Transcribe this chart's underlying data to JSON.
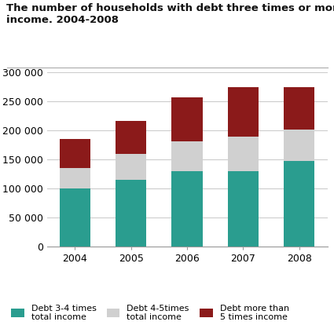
{
  "title": "The number of households with debt three times or more total\nincome. 2004-2008",
  "years": [
    2004,
    2005,
    2006,
    2007,
    2008
  ],
  "debt_3_4": [
    100000,
    115000,
    130000,
    130000,
    147000
  ],
  "debt_4_5": [
    35000,
    45000,
    52000,
    60000,
    55000
  ],
  "debt_5plus": [
    50000,
    57000,
    75000,
    85000,
    73000
  ],
  "color_3_4": "#2a9d8f",
  "color_4_5": "#d0d0d0",
  "color_5plus": "#8b1a1a",
  "ylim": [
    0,
    300000
  ],
  "yticks": [
    0,
    50000,
    100000,
    150000,
    200000,
    250000,
    300000
  ],
  "legend_labels": [
    "Debt 3-4 times\ntotal income",
    "Debt 4-5times\ntotal income",
    "Debt more than\n5 times income"
  ],
  "bar_width": 0.55,
  "background_color": "#ffffff",
  "grid_color": "#cccccc"
}
